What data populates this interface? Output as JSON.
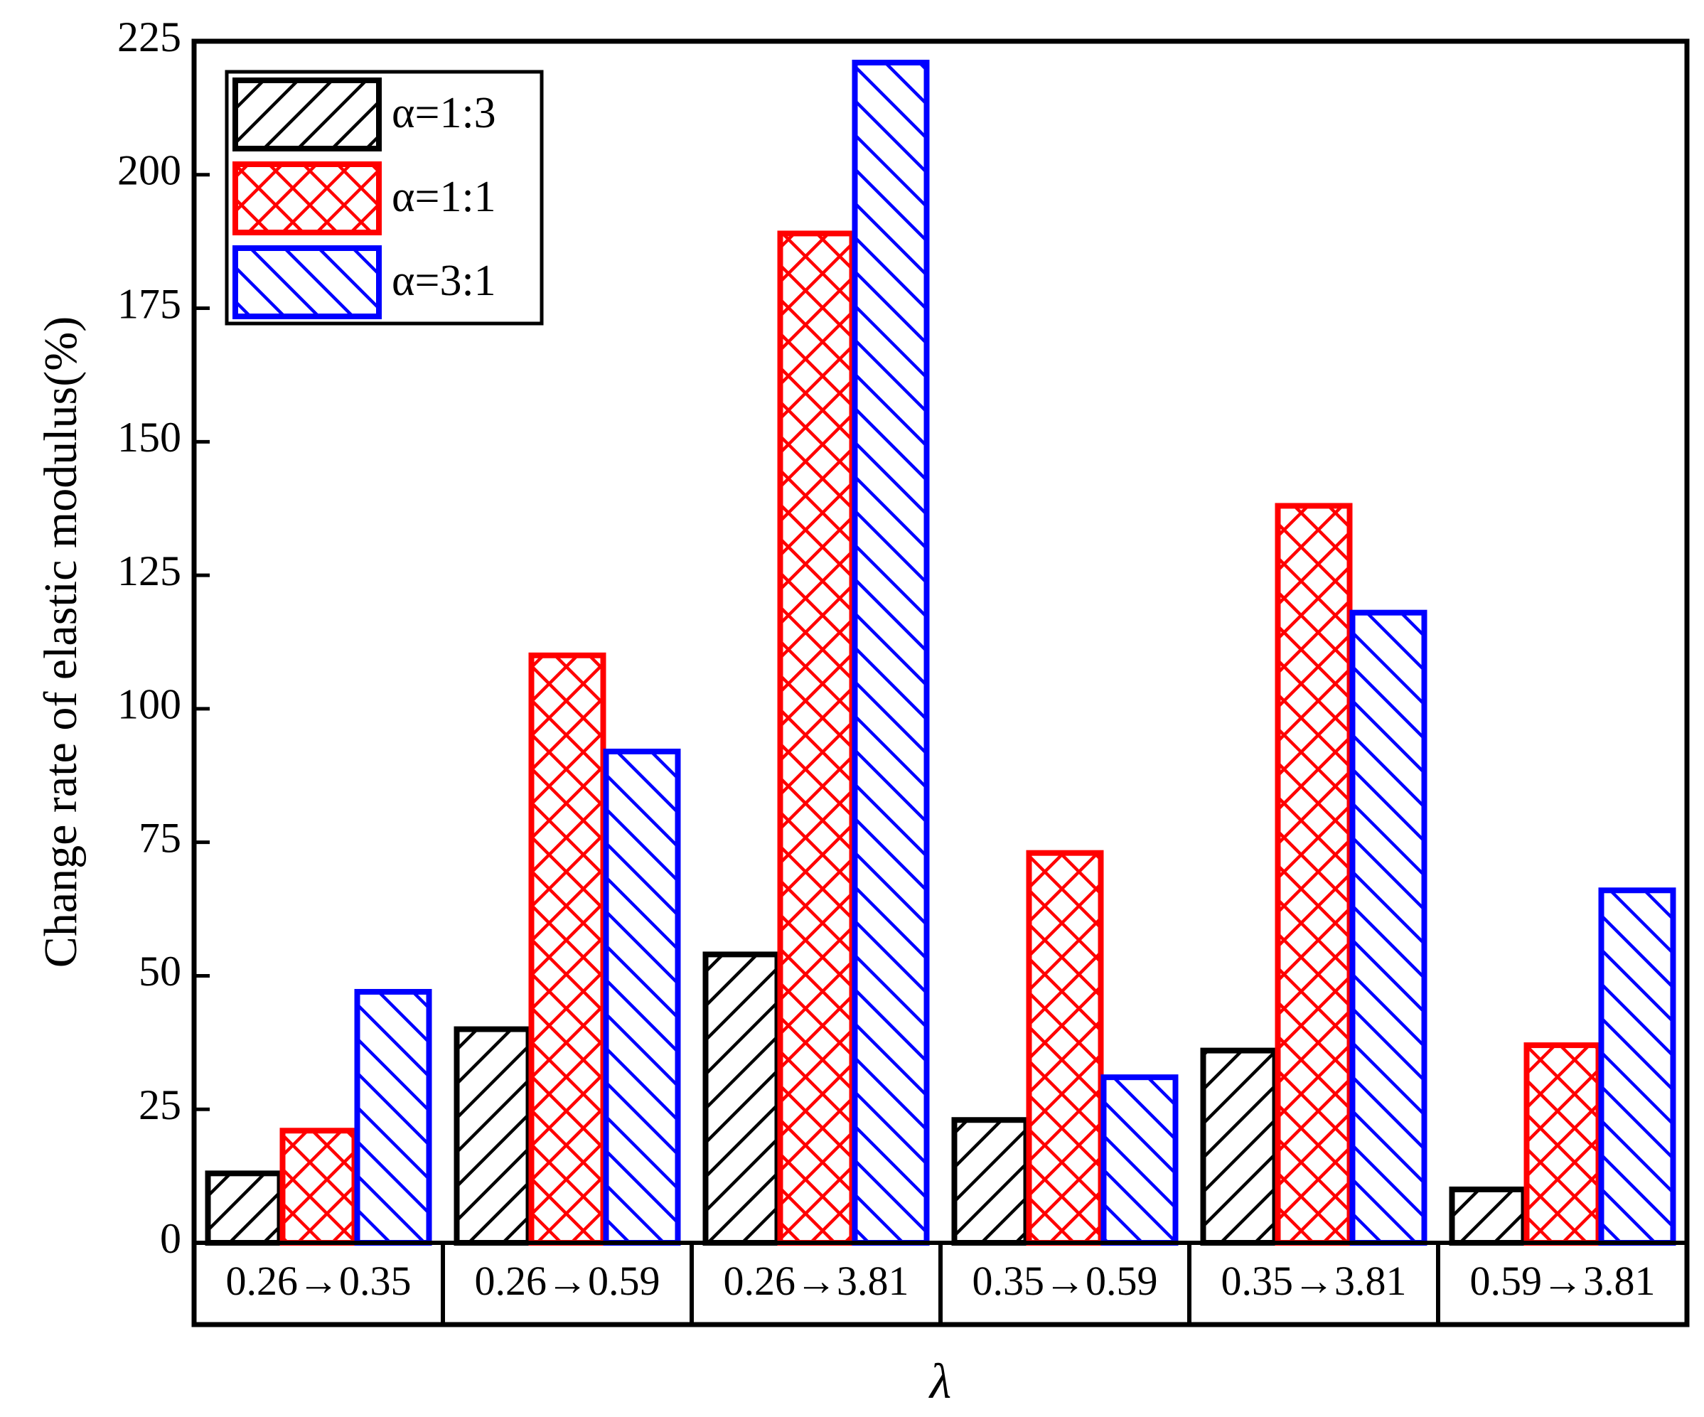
{
  "chart_data": {
    "type": "bar",
    "y_label": "Change rate of elastic modulus(%)",
    "x_label": "λ",
    "categories": [
      "0.26→0.35",
      "0.26→0.59",
      "0.26→3.81",
      "0.35→0.59",
      "0.35→3.81",
      "0.59→3.81"
    ],
    "series": [
      {
        "name": "α=1:3",
        "color": "#000000",
        "hatch": "forward",
        "values": [
          13,
          40,
          54,
          23,
          36,
          10
        ]
      },
      {
        "name": "α=1:1",
        "color": "#ff0000",
        "hatch": "cross",
        "values": [
          21,
          110,
          189,
          73,
          138,
          37
        ]
      },
      {
        "name": "α=3:1",
        "color": "#0000ff",
        "hatch": "back",
        "values": [
          47,
          92,
          221,
          31,
          118,
          66
        ]
      }
    ],
    "ylim": [
      0,
      225
    ],
    "yticks": [
      0,
      25,
      50,
      75,
      100,
      125,
      150,
      175,
      200,
      225
    ],
    "legend": "upper left"
  }
}
